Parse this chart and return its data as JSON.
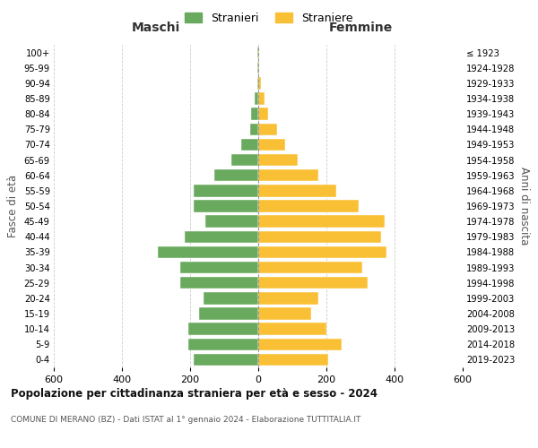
{
  "age_groups": [
    "0-4",
    "5-9",
    "10-14",
    "15-19",
    "20-24",
    "25-29",
    "30-34",
    "35-39",
    "40-44",
    "45-49",
    "50-54",
    "55-59",
    "60-64",
    "65-69",
    "70-74",
    "75-79",
    "80-84",
    "85-89",
    "90-94",
    "95-99",
    "100+"
  ],
  "birth_years": [
    "2019-2023",
    "2014-2018",
    "2009-2013",
    "2004-2008",
    "1999-2003",
    "1994-1998",
    "1989-1993",
    "1984-1988",
    "1979-1983",
    "1974-1978",
    "1969-1973",
    "1964-1968",
    "1959-1963",
    "1954-1958",
    "1949-1953",
    "1944-1948",
    "1939-1943",
    "1934-1938",
    "1929-1933",
    "1924-1928",
    "≤ 1923"
  ],
  "maschi": [
    190,
    205,
    205,
    175,
    160,
    230,
    230,
    295,
    215,
    155,
    190,
    190,
    130,
    80,
    50,
    25,
    20,
    10,
    3,
    2,
    2
  ],
  "femmine": [
    205,
    245,
    200,
    155,
    175,
    320,
    305,
    375,
    360,
    370,
    295,
    230,
    175,
    115,
    80,
    55,
    30,
    18,
    8,
    3,
    3
  ],
  "maschi_color": "#6aaa5e",
  "femmine_color": "#f9c035",
  "title": "Popolazione per cittadinanza straniera per età e sesso - 2024",
  "subtitle": "COMUNE DI MERANO (BZ) - Dati ISTAT al 1° gennaio 2024 - Elaborazione TUTTITALIA.IT",
  "ylabel_left": "Fasce di età",
  "ylabel_right": "Anni di nascita",
  "xlabel_maschi": "Maschi",
  "xlabel_femmine": "Femmine",
  "legend_maschi": "Stranieri",
  "legend_femmine": "Straniere",
  "xlim": 600,
  "background_color": "#ffffff",
  "grid_color": "#cccccc"
}
